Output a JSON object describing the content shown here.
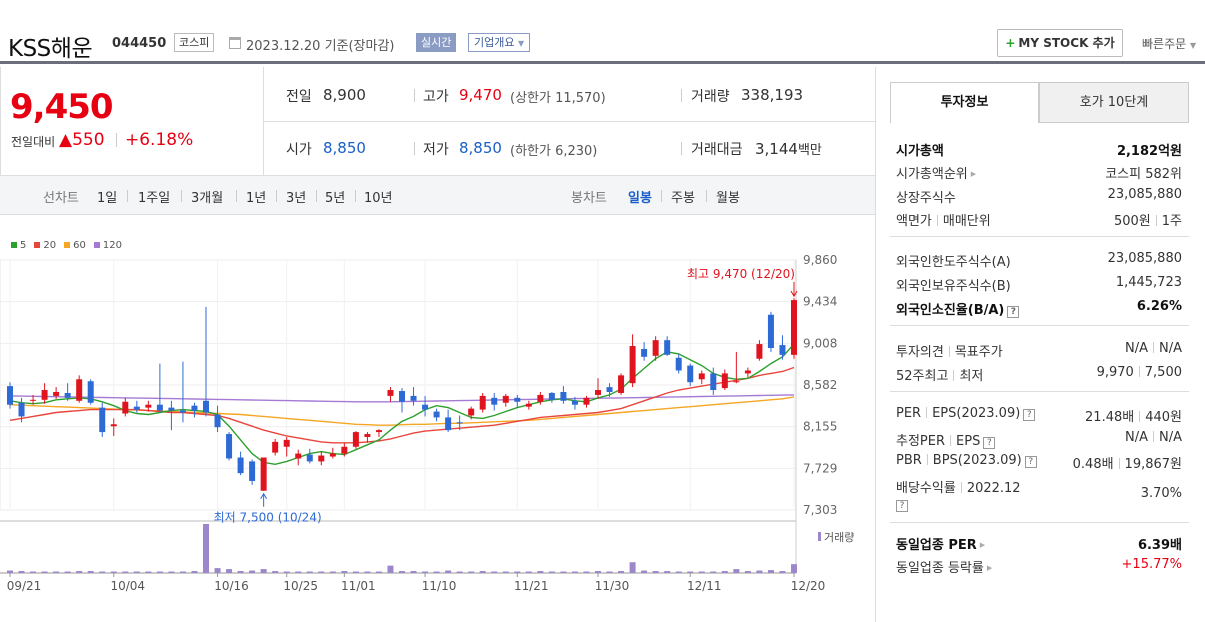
{
  "header": {
    "company": "KSS해운",
    "code": "044450",
    "market": "코스피",
    "date": "2023.12.20 기준(장마감)",
    "realtime": "실시간",
    "overview": "기업개요",
    "mystock": "MY STOCK 추가",
    "quick_order": "빠른주문"
  },
  "price": {
    "current": "9,450",
    "change_label": "전일대비",
    "change_abs": "550",
    "change_pct": "+6.18%"
  },
  "quote": {
    "prev_label": "전일",
    "prev": "8,900",
    "high_label": "고가",
    "high": "9,470",
    "upper_limit": "(상한가 11,570)",
    "volume_label": "거래량",
    "volume": "338,193",
    "open_label": "시가",
    "open": "8,850",
    "low_label": "저가",
    "low": "8,850",
    "lower_limit": "(하한가 6,230)",
    "amount_label": "거래대금",
    "amount": "3,144",
    "amount_unit": "백만"
  },
  "period": {
    "line_label": "선차트",
    "ranges": [
      "1일",
      "1주일",
      "3개월",
      "1년",
      "3년",
      "5년",
      "10년"
    ],
    "candle_label": "봉차트",
    "candles": [
      "일봉",
      "주봉",
      "월봉"
    ],
    "selected_candle": "일봉"
  },
  "chart_data": {
    "type": "candlestick",
    "legend": [
      {
        "name": "5",
        "color": "#2ca02c"
      },
      {
        "name": "20",
        "color": "#e8453c"
      },
      {
        "name": "60",
        "color": "#f5a623"
      },
      {
        "name": "120",
        "color": "#a57ad4"
      }
    ],
    "y_ticks": [
      "9,860",
      "9,434",
      "9,008",
      "8,582",
      "8,155",
      "7,729",
      "7,303"
    ],
    "ylim": [
      7303,
      9860
    ],
    "x_ticks": [
      "09/21",
      "10/04",
      "10/16",
      "10/25",
      "11/01",
      "11/10",
      "11/21",
      "11/30",
      "12/11",
      "12/20"
    ],
    "max_label": "최고 9,470 (12/20)",
    "min_label": "최저 7,500 (10/24)",
    "volume_label": "거래량",
    "candles": [
      {
        "o": 8570,
        "h": 8610,
        "l": 8340,
        "c": 8380
      },
      {
        "o": 8400,
        "h": 8450,
        "l": 8200,
        "c": 8260
      },
      {
        "o": 8420,
        "h": 8480,
        "l": 8380,
        "c": 8430
      },
      {
        "o": 8430,
        "h": 8600,
        "l": 8390,
        "c": 8530
      },
      {
        "o": 8470,
        "h": 8560,
        "l": 8440,
        "c": 8510
      },
      {
        "o": 8500,
        "h": 8600,
        "l": 8420,
        "c": 8450
      },
      {
        "o": 8420,
        "h": 8680,
        "l": 8400,
        "c": 8640
      },
      {
        "o": 8620,
        "h": 8640,
        "l": 8380,
        "c": 8400
      },
      {
        "o": 8350,
        "h": 8400,
        "l": 8050,
        "c": 8100
      },
      {
        "o": 8160,
        "h": 8240,
        "l": 8060,
        "c": 8180
      },
      {
        "o": 8290,
        "h": 8450,
        "l": 8260,
        "c": 8410
      },
      {
        "o": 8360,
        "h": 8420,
        "l": 8300,
        "c": 8330
      },
      {
        "o": 8350,
        "h": 8420,
        "l": 8310,
        "c": 8380
      },
      {
        "o": 8380,
        "h": 8800,
        "l": 8300,
        "c": 8320
      },
      {
        "o": 8350,
        "h": 8420,
        "l": 8120,
        "c": 8320
      },
      {
        "o": 8320,
        "h": 8820,
        "l": 8200,
        "c": 8300
      },
      {
        "o": 8370,
        "h": 8400,
        "l": 8250,
        "c": 8320
      },
      {
        "o": 8420,
        "h": 9380,
        "l": 8260,
        "c": 8300
      },
      {
        "o": 8280,
        "h": 8370,
        "l": 8100,
        "c": 8150
      },
      {
        "o": 8080,
        "h": 8100,
        "l": 7810,
        "c": 7830
      },
      {
        "o": 7840,
        "h": 7900,
        "l": 7660,
        "c": 7680
      },
      {
        "o": 7800,
        "h": 7820,
        "l": 7560,
        "c": 7600
      },
      {
        "o": 7500,
        "h": 7840,
        "l": 7500,
        "c": 7840
      },
      {
        "o": 7890,
        "h": 8030,
        "l": 7860,
        "c": 8000
      },
      {
        "o": 7950,
        "h": 8050,
        "l": 7850,
        "c": 8020
      },
      {
        "o": 7830,
        "h": 7920,
        "l": 7760,
        "c": 7880
      },
      {
        "o": 7870,
        "h": 7930,
        "l": 7780,
        "c": 7800
      },
      {
        "o": 7800,
        "h": 7900,
        "l": 7760,
        "c": 7860
      },
      {
        "o": 7850,
        "h": 7940,
        "l": 7830,
        "c": 7880
      },
      {
        "o": 7880,
        "h": 7990,
        "l": 7850,
        "c": 7950
      },
      {
        "o": 7950,
        "h": 8110,
        "l": 7930,
        "c": 8100
      },
      {
        "o": 8050,
        "h": 8100,
        "l": 7990,
        "c": 8080
      },
      {
        "o": 8100,
        "h": 8130,
        "l": 8050,
        "c": 8120
      },
      {
        "o": 8470,
        "h": 8560,
        "l": 8410,
        "c": 8530
      },
      {
        "o": 8520,
        "h": 8550,
        "l": 8300,
        "c": 8410
      },
      {
        "o": 8470,
        "h": 8560,
        "l": 8370,
        "c": 8420
      },
      {
        "o": 8380,
        "h": 8470,
        "l": 8260,
        "c": 8330
      },
      {
        "o": 8310,
        "h": 8340,
        "l": 8210,
        "c": 8250
      },
      {
        "o": 8250,
        "h": 8330,
        "l": 8100,
        "c": 8120
      },
      {
        "o": 8200,
        "h": 8270,
        "l": 8120,
        "c": 8190
      },
      {
        "o": 8270,
        "h": 8360,
        "l": 8230,
        "c": 8340
      },
      {
        "o": 8330,
        "h": 8500,
        "l": 8300,
        "c": 8470
      },
      {
        "o": 8450,
        "h": 8500,
        "l": 8320,
        "c": 8380
      },
      {
        "o": 8400,
        "h": 8490,
        "l": 8360,
        "c": 8470
      },
      {
        "o": 8450,
        "h": 8480,
        "l": 8350,
        "c": 8410
      },
      {
        "o": 8360,
        "h": 8420,
        "l": 8330,
        "c": 8390
      },
      {
        "o": 8410,
        "h": 8510,
        "l": 8380,
        "c": 8480
      },
      {
        "o": 8500,
        "h": 8510,
        "l": 8400,
        "c": 8430
      },
      {
        "o": 8510,
        "h": 8570,
        "l": 8390,
        "c": 8420
      },
      {
        "o": 8420,
        "h": 8460,
        "l": 8330,
        "c": 8380
      },
      {
        "o": 8380,
        "h": 8470,
        "l": 8350,
        "c": 8450
      },
      {
        "o": 8480,
        "h": 8650,
        "l": 8440,
        "c": 8530
      },
      {
        "o": 8560,
        "h": 8600,
        "l": 8460,
        "c": 8510
      },
      {
        "o": 8500,
        "h": 8700,
        "l": 8480,
        "c": 8680
      },
      {
        "o": 8600,
        "h": 9100,
        "l": 8560,
        "c": 8980
      },
      {
        "o": 8950,
        "h": 9020,
        "l": 8830,
        "c": 8870
      },
      {
        "o": 8880,
        "h": 9080,
        "l": 8830,
        "c": 9040
      },
      {
        "o": 9040,
        "h": 9080,
        "l": 8880,
        "c": 8890
      },
      {
        "o": 8860,
        "h": 8900,
        "l": 8700,
        "c": 8730
      },
      {
        "o": 8780,
        "h": 8800,
        "l": 8570,
        "c": 8610
      },
      {
        "o": 8640,
        "h": 8730,
        "l": 8590,
        "c": 8700
      },
      {
        "o": 8700,
        "h": 8760,
        "l": 8480,
        "c": 8530
      },
      {
        "o": 8550,
        "h": 8740,
        "l": 8530,
        "c": 8700
      },
      {
        "o": 8620,
        "h": 8920,
        "l": 8600,
        "c": 8620
      },
      {
        "o": 8700,
        "h": 8760,
        "l": 8660,
        "c": 8730
      },
      {
        "o": 8850,
        "h": 9040,
        "l": 8830,
        "c": 9000
      },
      {
        "o": 9300,
        "h": 9330,
        "l": 8920,
        "c": 8960
      },
      {
        "o": 8990,
        "h": 9090,
        "l": 8840,
        "c": 8890
      },
      {
        "o": 8890,
        "h": 9470,
        "l": 8850,
        "c": 9450
      }
    ],
    "volumes": [
      5,
      4,
      3,
      3,
      3,
      3,
      4,
      4,
      3,
      3,
      3,
      3,
      3,
      3,
      3,
      3,
      4,
      100,
      10,
      8,
      4,
      5,
      8,
      4,
      3,
      3,
      3,
      3,
      3,
      4,
      3,
      3,
      3,
      15,
      4,
      4,
      3,
      3,
      5,
      3,
      3,
      4,
      3,
      3,
      3,
      3,
      4,
      3,
      3,
      3,
      3,
      4,
      3,
      4,
      22,
      5,
      4,
      4,
      3,
      3,
      3,
      3,
      4,
      8,
      4,
      5,
      6,
      4,
      18
    ],
    "ma5": [
      8420,
      8400,
      8390,
      8400,
      8430,
      8440,
      8450,
      8440,
      8410,
      8370,
      8320,
      8290,
      8280,
      8300,
      8320,
      8330,
      8320,
      8310,
      8280,
      8160,
      8020,
      7880,
      7790,
      7770,
      7800,
      7840,
      7880,
      7900,
      7880,
      7870,
      7920,
      7970,
      8020,
      8120,
      8210,
      8260,
      8330,
      8370,
      8350,
      8300,
      8250,
      8240,
      8270,
      8310,
      8350,
      8380,
      8410,
      8430,
      8440,
      8420,
      8410,
      8450,
      8480,
      8540,
      8650,
      8750,
      8850,
      8920,
      8900,
      8840,
      8780,
      8700,
      8660,
      8640,
      8650,
      8720,
      8800,
      8870,
      9000
    ],
    "ma20": [
      8220,
      8240,
      8260,
      8280,
      8300,
      8310,
      8320,
      8330,
      8330,
      8330,
      8330,
      8330,
      8320,
      8310,
      8300,
      8300,
      8290,
      8280,
      8270,
      8240,
      8200,
      8160,
      8120,
      8090,
      8060,
      8040,
      8020,
      8000,
      7990,
      7990,
      7990,
      8000,
      8010,
      8030,
      8060,
      8090,
      8110,
      8120,
      8130,
      8140,
      8150,
      8160,
      8170,
      8190,
      8210,
      8230,
      8250,
      8260,
      8270,
      8280,
      8290,
      8300,
      8320,
      8340,
      8380,
      8420,
      8460,
      8500,
      8530,
      8550,
      8570,
      8590,
      8610,
      8630,
      8650,
      8680,
      8700,
      8720,
      8760
    ],
    "ma60": [
      8380,
      8375,
      8370,
      8365,
      8360,
      8355,
      8350,
      8345,
      8340,
      8335,
      8330,
      8325,
      8320,
      8315,
      8310,
      8305,
      8300,
      8295,
      8290,
      8285,
      8280,
      8270,
      8260,
      8250,
      8240,
      8230,
      8220,
      8210,
      8200,
      8190,
      8180,
      8175,
      8170,
      8170,
      8175,
      8180,
      8180,
      8185,
      8190,
      8190,
      8195,
      8200,
      8205,
      8210,
      8215,
      8220,
      8230,
      8240,
      8250,
      8260,
      8270,
      8280,
      8290,
      8300,
      8310,
      8320,
      8330,
      8340,
      8350,
      8360,
      8370,
      8380,
      8390,
      8400,
      8410,
      8420,
      8430,
      8440,
      8460
    ],
    "ma120": [
      8470,
      8468,
      8466,
      8464,
      8462,
      8460,
      8458,
      8456,
      8454,
      8452,
      8450,
      8448,
      8446,
      8444,
      8442,
      8440,
      8438,
      8436,
      8434,
      8432,
      8430,
      8428,
      8426,
      8424,
      8422,
      8420,
      8418,
      8416,
      8414,
      8412,
      8410,
      8410,
      8410,
      8410,
      8412,
      8414,
      8416,
      8418,
      8420,
      8422,
      8424,
      8426,
      8428,
      8430,
      8432,
      8434,
      8436,
      8438,
      8440,
      8442,
      8444,
      8446,
      8448,
      8450,
      8452,
      8454,
      8456,
      8458,
      8460,
      8462,
      8464,
      8466,
      8468,
      8470,
      8472,
      8474,
      8476,
      8478,
      8480
    ]
  },
  "right_panel": {
    "tab_info": "투자정보",
    "tab_hoga": "호가 10단계",
    "market_cap_label": "시가총액",
    "market_cap": "2,182억원",
    "market_rank_label": "시가총액순위",
    "market_rank": "코스피 582위",
    "shares_label": "상장주식수",
    "shares": "23,085,880",
    "par_label": "액면가",
    "unit_label": "매매단위",
    "par": "500원",
    "unit": "1주",
    "foreign_limit_label": "외국인한도주식수(A)",
    "foreign_limit": "23,085,880",
    "foreign_hold_label": "외국인보유주식수(B)",
    "foreign_hold": "1,445,723",
    "foreign_rate_label": "외국인소진율(B/A)",
    "foreign_rate": "6.26%",
    "opinion_label": "투자의견",
    "target_label": "목표주가",
    "opinion": "N/A",
    "target": "N/A",
    "week52_label": "52주최고",
    "week52_low_label": "최저",
    "week52_high": "9,970",
    "week52_low": "7,500",
    "per_label": "PER",
    "eps_label": "EPS(2023.09)",
    "per": "21.48배",
    "eps": "440원",
    "est_per_label": "추정PER",
    "est_eps_label": "EPS",
    "est_per": "N/A",
    "est_eps": "N/A",
    "pbr_label": "PBR",
    "bps_label": "BPS(2023.09)",
    "pbr": "0.48배",
    "bps": "19,867원",
    "div_label": "배당수익률",
    "div_period": "2022.12",
    "div": "3.70%",
    "sector_per_label": "동일업종 PER",
    "sector_per": "6.39배",
    "sector_rate_label": "동일업종 등락률",
    "sector_rate": "+15.77%"
  }
}
